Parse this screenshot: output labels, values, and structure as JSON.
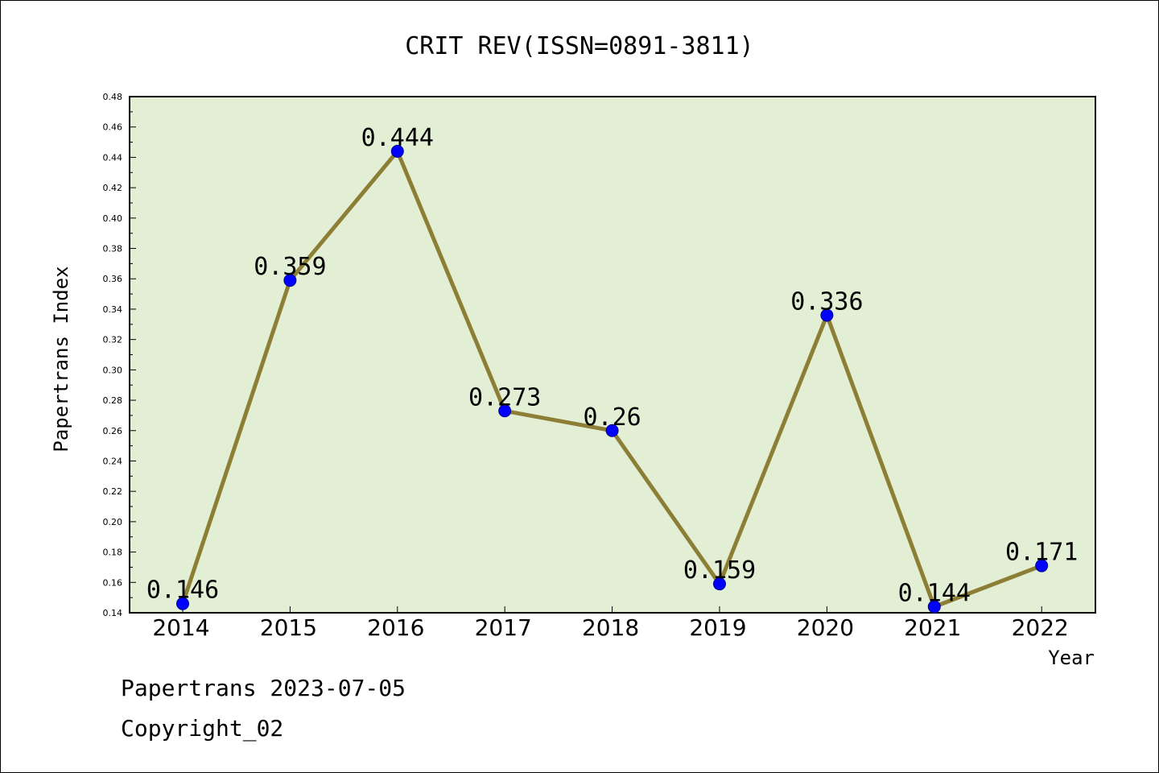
{
  "footer": {
    "line1": "Papertrans 2023-07-05",
    "line2": "Copyright_02"
  },
  "chart_data": {
    "type": "line",
    "title": "CRIT REV(ISSN=0891-3811)",
    "xlabel": "Year",
    "ylabel": "Papertrans Index",
    "categories": [
      "2014",
      "2015",
      "2016",
      "2017",
      "2018",
      "2019",
      "2020",
      "2021",
      "2022"
    ],
    "series": [
      {
        "values": [
          0.146,
          0.359,
          0.444,
          0.273,
          0.26,
          0.159,
          0.336,
          0.144,
          0.171
        ],
        "labels": [
          "0.146",
          "0.359",
          "0.444",
          "0.273",
          "0.26",
          "0.159",
          "0.336",
          "0.144",
          "0.171"
        ]
      }
    ],
    "ylim": [
      0.14,
      0.48
    ],
    "yticks": [
      "0.14",
      "0.16",
      "0.18",
      "0.20",
      "0.22",
      "0.24",
      "0.26",
      "0.28",
      "0.30",
      "0.32",
      "0.34",
      "0.36",
      "0.38",
      "0.40",
      "0.42",
      "0.44",
      "0.46",
      "0.48"
    ],
    "grid": false,
    "legend": "none",
    "colors": {
      "plot_background": "#e2efd4",
      "line": "#8c7f35",
      "marker": "#0000ff"
    }
  }
}
